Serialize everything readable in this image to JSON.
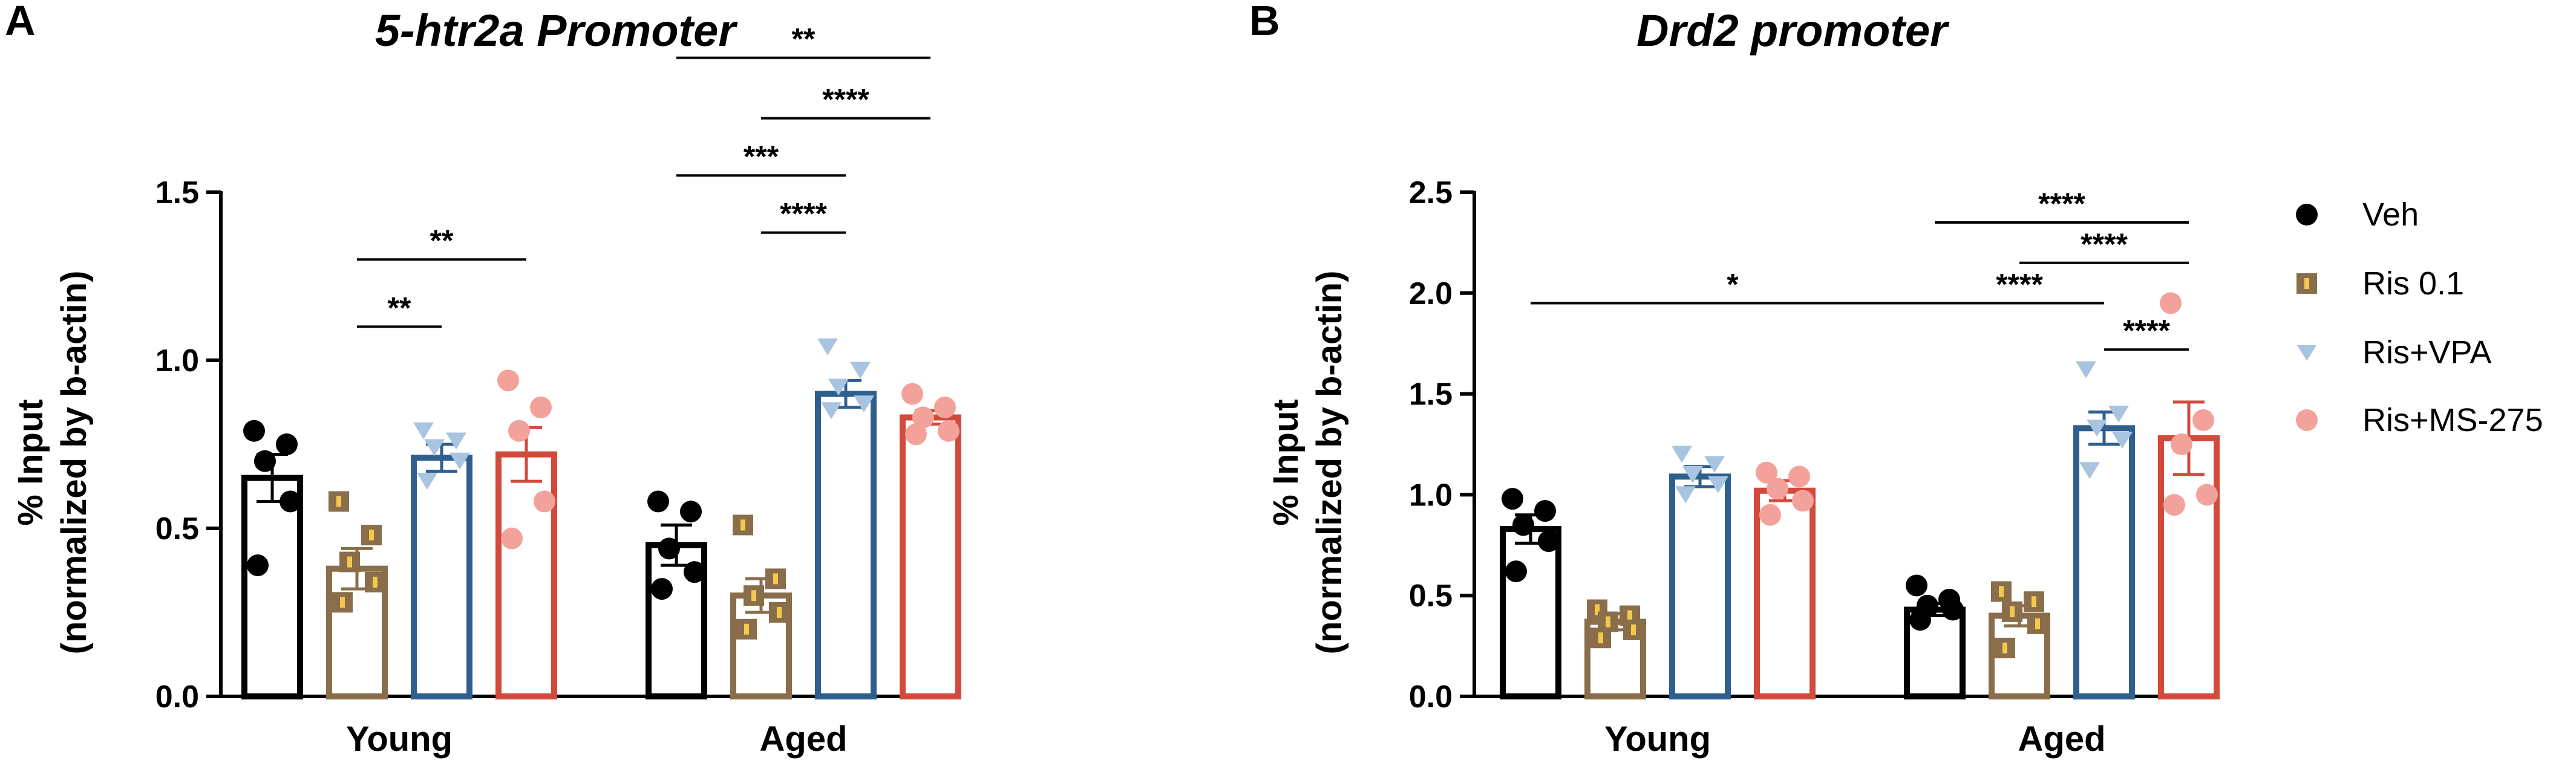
{
  "colors": {
    "veh": "#000000",
    "ris01": "#8a6d4a",
    "ris01_mark": "#f2c94c",
    "risvpa": "#2f5f8f",
    "risvpa_point": "#a9c4e0",
    "risms": "#d24a3c",
    "risms_point": "#f2a29a"
  },
  "legend": [
    "Veh",
    "Ris 0.1",
    "Ris+VPA",
    "Ris+MS-275"
  ],
  "chart_data": [
    {
      "type": "bar",
      "panel": "A",
      "title": "5-htr2a Promoter",
      "xlabel": "",
      "ylabel": "% Input",
      "ylabel2": "(normalized by b-actin)",
      "ylim": [
        0,
        1.5
      ],
      "yticks": [
        "0.0",
        "0.5",
        "1.0",
        "1.5"
      ],
      "categories": [
        "Young",
        "Aged"
      ],
      "series": [
        {
          "name": "Veh",
          "values": [
            0.65,
            0.45
          ],
          "sem": [
            0.07,
            0.06
          ],
          "points": [
            [
              0.79,
              0.75,
              0.7,
              0.58,
              0.39
            ],
            [
              0.58,
              0.55,
              0.44,
              0.37,
              0.32
            ]
          ]
        },
        {
          "name": "Ris 0.1",
          "values": [
            0.38,
            0.3
          ],
          "sem": [
            0.06,
            0.05
          ],
          "points": [
            [
              0.58,
              0.48,
              0.4,
              0.34,
              0.28
            ],
            [
              0.51,
              0.35,
              0.3,
              0.25,
              0.2
            ]
          ]
        },
        {
          "name": "Ris+VPA",
          "values": [
            0.71,
            0.9
          ],
          "sem": [
            0.04,
            0.04
          ],
          "points": [
            [
              0.79,
              0.76,
              0.74,
              0.7,
              0.64
            ],
            [
              1.04,
              0.97,
              0.92,
              0.87,
              0.85
            ]
          ]
        },
        {
          "name": "Ris+MS-275",
          "values": [
            0.72,
            0.83
          ],
          "sem": [
            0.08,
            0.02
          ],
          "points": [
            [
              0.94,
              0.86,
              0.79,
              0.58,
              0.47
            ],
            [
              0.9,
              0.86,
              0.83,
              0.79,
              0.78
            ]
          ]
        }
      ],
      "significance": [
        {
          "cat": 0,
          "from": 1,
          "to": 2,
          "y": 1.1,
          "label": "**"
        },
        {
          "cat": 0,
          "from": 1,
          "to": 3,
          "y": 1.3,
          "label": "**"
        },
        {
          "cat": 1,
          "from": 1,
          "to": 2,
          "y": 1.38,
          "label": "****"
        },
        {
          "cat": 1,
          "from": 0,
          "to": 2,
          "y": 1.55,
          "label": "***"
        },
        {
          "cat": 1,
          "from": 1,
          "to": 3,
          "y": 1.72,
          "label": "****"
        },
        {
          "cat": 1,
          "from": 0,
          "to": 3,
          "y": 1.9,
          "label": "**"
        }
      ]
    },
    {
      "type": "bar",
      "panel": "B",
      "title": "Drd2 promoter",
      "xlabel": "",
      "ylabel": "% Input",
      "ylabel2": "(normalized by b-actin)",
      "ylim": [
        0,
        2.5
      ],
      "yticks": [
        "0.0",
        "0.5",
        "1.0",
        "1.5",
        "2.0",
        "2.5"
      ],
      "categories": [
        "Young",
        "Aged"
      ],
      "series": [
        {
          "name": "Veh",
          "values": [
            0.83,
            0.43
          ],
          "sem": [
            0.07,
            0.03
          ],
          "points": [
            [
              0.98,
              0.92,
              0.85,
              0.77,
              0.62
            ],
            [
              0.55,
              0.48,
              0.45,
              0.43,
              0.38
            ]
          ]
        },
        {
          "name": "Ris 0.1",
          "values": [
            0.37,
            0.4
          ],
          "sem": [
            0.04,
            0.05
          ],
          "points": [
            [
              0.43,
              0.4,
              0.37,
              0.33,
              0.29
            ],
            [
              0.52,
              0.47,
              0.42,
              0.36,
              0.24
            ]
          ]
        },
        {
          "name": "Ris+VPA",
          "values": [
            1.09,
            1.33
          ],
          "sem": [
            0.05,
            0.08
          ],
          "points": [
            [
              1.2,
              1.15,
              1.1,
              1.05,
              1.0
            ],
            [
              1.62,
              1.4,
              1.33,
              1.27,
              1.12
            ]
          ]
        },
        {
          "name": "Ris+MS-275",
          "values": [
            1.02,
            1.28
          ],
          "sem": [
            0.05,
            0.18
          ],
          "points": [
            [
              1.11,
              1.09,
              1.03,
              0.97,
              0.9
            ],
            [
              1.95,
              1.37,
              1.25,
              1.0,
              0.95
            ]
          ]
        }
      ],
      "significance": [
        {
          "cat": 0,
          "from": 0,
          "to": 0,
          "span": [
            0,
            1,
            0,
            0
          ],
          "y": 1.95,
          "label": "*"
        },
        {
          "cat": 1,
          "from": 2,
          "to": 3,
          "y": 1.72,
          "label": "****"
        },
        {
          "cat": 1,
          "from": 0,
          "to": 2,
          "y": 1.95,
          "label": "****"
        },
        {
          "cat": 1,
          "from": 1,
          "to": 3,
          "y": 2.15,
          "label": "****"
        },
        {
          "cat": 1,
          "from": 0,
          "to": 3,
          "y": 2.35,
          "label": "****"
        }
      ]
    }
  ]
}
